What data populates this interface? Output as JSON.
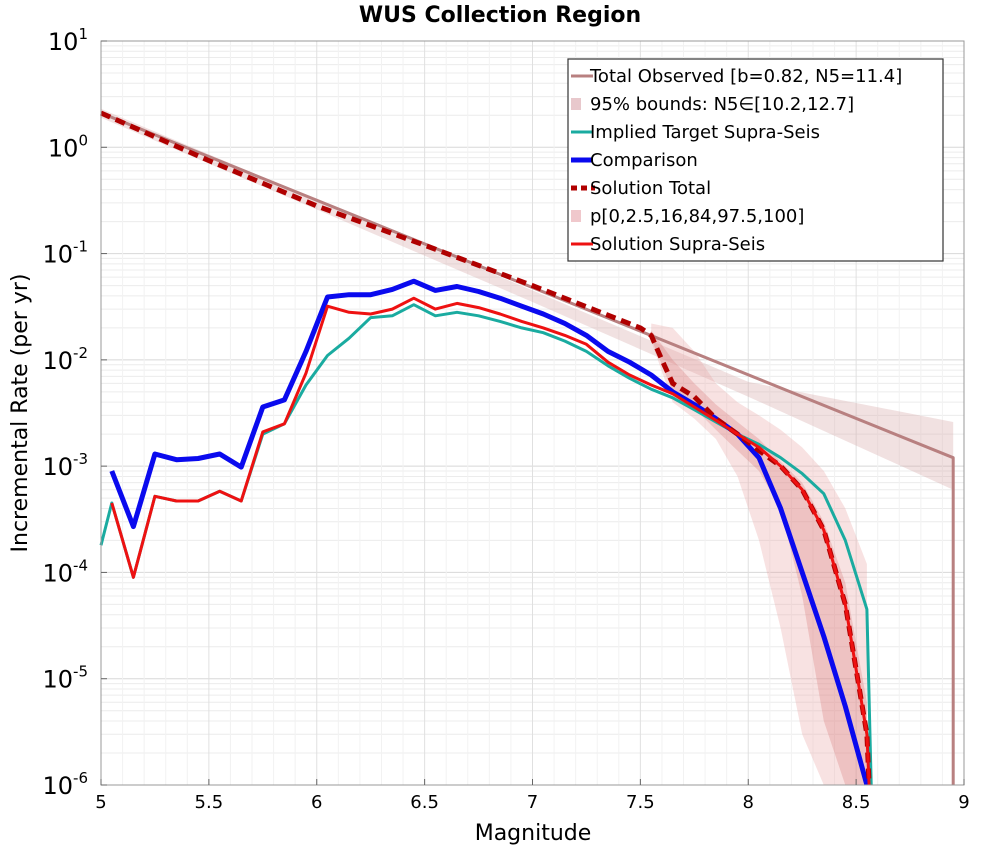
{
  "chart_data": {
    "type": "line",
    "title": "WUS Collection Region",
    "xlabel": "Magnitude",
    "ylabel": "Incremental Rate (per yr)",
    "xlim": [
      5,
      9
    ],
    "ylim": [
      1e-06,
      10
    ],
    "yscale": "log",
    "grid": true,
    "legend_position": "top-right",
    "xticks": [
      "5",
      "5.5",
      "6",
      "6.5",
      "7",
      "7.5",
      "8",
      "8.5",
      "9"
    ],
    "yticks": [
      {
        "base": "10",
        "exp": "-6",
        "value": 1e-06
      },
      {
        "base": "10",
        "exp": "-5",
        "value": 1e-05
      },
      {
        "base": "10",
        "exp": "-4",
        "value": 0.0001
      },
      {
        "base": "10",
        "exp": "-3",
        "value": 0.001
      },
      {
        "base": "10",
        "exp": "-2",
        "value": 0.01
      },
      {
        "base": "10",
        "exp": "-1",
        "value": 0.1
      },
      {
        "base": "10",
        "exp": "0",
        "value": 1
      },
      {
        "base": "10",
        "exp": "1",
        "value": 10
      }
    ],
    "bands": [
      {
        "name": "95% bounds: N5∈[10.2,12.7]",
        "color": "#d8a8a8",
        "opacity": 0.35,
        "x": [
          5.0,
          6.0,
          7.0,
          8.0,
          8.95
        ],
        "lower": [
          1.9,
          0.26,
          0.035,
          0.0045,
          0.0006
        ],
        "upper": [
          2.3,
          0.32,
          0.045,
          0.0062,
          0.0026
        ]
      },
      {
        "name": "p[0,2.5,16,84,97.5,100]",
        "color": "#e8a0a0",
        "opacity": 0.3,
        "x": [
          7.55,
          7.65,
          7.75,
          7.85,
          7.95,
          8.05,
          8.15,
          8.25,
          8.35,
          8.45,
          8.55
        ],
        "lower": [
          0.015,
          0.004,
          0.0028,
          0.0018,
          0.0008,
          0.0002,
          3e-05,
          3e-06,
          1e-06,
          1e-06,
          1e-06
        ],
        "upper": [
          0.022,
          0.02,
          0.012,
          0.006,
          0.004,
          0.003,
          0.0022,
          0.0015,
          0.0009,
          0.0004,
          0.00012
        ]
      },
      {
        "name": "p[0,2.5,16,84,97.5,100] inner",
        "color": "#d87878",
        "opacity": 0.3,
        "x": [
          7.55,
          7.65,
          7.75,
          7.85,
          7.95,
          8.05,
          8.15,
          8.25,
          8.35,
          8.45,
          8.55
        ],
        "lower": [
          0.016,
          0.005,
          0.0035,
          0.0022,
          0.0014,
          0.0009,
          0.0004,
          6e-05,
          4e-06,
          1e-06,
          1e-06
        ],
        "upper": [
          0.019,
          0.01,
          0.006,
          0.0038,
          0.0026,
          0.0018,
          0.0011,
          0.0007,
          0.0003,
          8e-05,
          6e-06
        ]
      }
    ],
    "series": [
      {
        "name": "Total Observed [b=0.82, N5=11.4]",
        "color": "#b88080",
        "width": 3,
        "dash": "",
        "x": [
          5.0,
          8.95,
          8.95
        ],
        "y": [
          2.1,
          0.0012,
          1e-06
        ]
      },
      {
        "name": "Implied Target Supra-Seis",
        "color": "#1aaba0",
        "width": 3,
        "dash": "",
        "x": [
          5.0,
          5.05,
          5.15,
          5.25,
          5.35,
          5.45,
          5.55,
          5.65,
          5.75,
          5.85,
          5.95,
          6.05,
          6.15,
          6.25,
          6.35,
          6.45,
          6.55,
          6.65,
          6.75,
          6.85,
          6.95,
          7.05,
          7.15,
          7.25,
          7.35,
          7.45,
          7.55,
          7.65,
          7.75,
          7.85,
          7.95,
          8.05,
          8.15,
          8.25,
          8.35,
          8.45,
          8.55,
          8.57
        ],
        "y": [
          0.00018,
          0.00045,
          9e-05,
          0.00052,
          0.00047,
          0.00047,
          0.00058,
          0.00047,
          0.002,
          0.0025,
          0.0058,
          0.011,
          0.016,
          0.025,
          0.026,
          0.033,
          0.026,
          0.028,
          0.026,
          0.023,
          0.02,
          0.018,
          0.015,
          0.012,
          0.0088,
          0.0067,
          0.0053,
          0.0044,
          0.0034,
          0.0026,
          0.002,
          0.0016,
          0.0012,
          0.00085,
          0.00055,
          0.0002,
          4.5e-05,
          1e-06
        ]
      },
      {
        "name": "Comparison",
        "color": "#0a0aee",
        "width": 5,
        "dash": "",
        "x": [
          5.05,
          5.15,
          5.25,
          5.35,
          5.45,
          5.55,
          5.65,
          5.75,
          5.85,
          5.95,
          6.05,
          6.15,
          6.25,
          6.35,
          6.45,
          6.55,
          6.65,
          6.75,
          6.85,
          6.95,
          7.05,
          7.15,
          7.25,
          7.35,
          7.45,
          7.55,
          7.65,
          7.75,
          7.85,
          7.95,
          8.05,
          8.15,
          8.25,
          8.35,
          8.45,
          8.55
        ],
        "y": [
          0.0009,
          0.00027,
          0.0013,
          0.00115,
          0.00118,
          0.0013,
          0.00098,
          0.0036,
          0.0042,
          0.012,
          0.039,
          0.041,
          0.041,
          0.046,
          0.055,
          0.045,
          0.049,
          0.044,
          0.038,
          0.032,
          0.027,
          0.022,
          0.017,
          0.012,
          0.0095,
          0.0072,
          0.005,
          0.0038,
          0.0028,
          0.002,
          0.0012,
          0.0004,
          0.0001,
          2.5e-05,
          5.5e-06,
          1e-06
        ]
      },
      {
        "name": "Solution Total",
        "color": "#b00000",
        "width": 5,
        "dash": "10,6",
        "x": [
          5.0,
          5.5,
          6.0,
          6.5,
          7.0,
          7.5,
          7.55,
          7.6,
          7.65,
          7.75,
          7.85,
          7.95,
          8.05,
          8.15,
          8.25,
          8.35,
          8.45,
          8.55,
          8.56
        ],
        "y": [
          2.1,
          0.75,
          0.28,
          0.12,
          0.05,
          0.02,
          0.017,
          0.01,
          0.006,
          0.0045,
          0.0028,
          0.002,
          0.0014,
          0.001,
          0.0006,
          0.00025,
          5e-05,
          3e-06,
          1e-06
        ]
      },
      {
        "name": "Solution Supra-Seis",
        "color": "#ee1111",
        "width": 3,
        "dash": "",
        "x": [
          5.05,
          5.15,
          5.25,
          5.35,
          5.45,
          5.55,
          5.65,
          5.75,
          5.85,
          5.95,
          6.05,
          6.15,
          6.25,
          6.35,
          6.45,
          6.55,
          6.65,
          6.75,
          6.85,
          6.95,
          7.05,
          7.15,
          7.25,
          7.35,
          7.45,
          7.55,
          7.65,
          7.75,
          7.85,
          7.95,
          8.05,
          8.15,
          8.25,
          8.35,
          8.45,
          8.55,
          8.56
        ],
        "y": [
          0.00045,
          9e-05,
          0.00052,
          0.00047,
          0.00047,
          0.00058,
          0.00047,
          0.0021,
          0.0025,
          0.0075,
          0.032,
          0.028,
          0.027,
          0.03,
          0.038,
          0.03,
          0.034,
          0.031,
          0.027,
          0.023,
          0.02,
          0.017,
          0.014,
          0.0095,
          0.0072,
          0.0058,
          0.0048,
          0.0036,
          0.0027,
          0.002,
          0.0015,
          0.001,
          0.0006,
          0.00025,
          5e-05,
          3e-06,
          1e-06
        ]
      }
    ],
    "legend": [
      {
        "label": "Total Observed [b=0.82, N5=11.4]",
        "kind": "line",
        "color": "#b88080",
        "width": 3,
        "dash": ""
      },
      {
        "label": "95% bounds: N5∈[10.2,12.7]",
        "kind": "patch",
        "color": "#e8c8cc",
        "width": 0,
        "dash": ""
      },
      {
        "label": "Implied Target Supra-Seis",
        "kind": "line",
        "color": "#1aaba0",
        "width": 3,
        "dash": ""
      },
      {
        "label": "Comparison",
        "kind": "line",
        "color": "#0a0aee",
        "width": 5,
        "dash": ""
      },
      {
        "label": "Solution Total",
        "kind": "line",
        "color": "#b00000",
        "width": 5,
        "dash": "10,6"
      },
      {
        "label": "p[0,2.5,16,84,97.5,100]",
        "kind": "patch",
        "color": "#f0c8cc",
        "width": 0,
        "dash": ""
      },
      {
        "label": "Solution Supra-Seis",
        "kind": "line",
        "color": "#ee1111",
        "width": 3,
        "dash": ""
      }
    ]
  }
}
